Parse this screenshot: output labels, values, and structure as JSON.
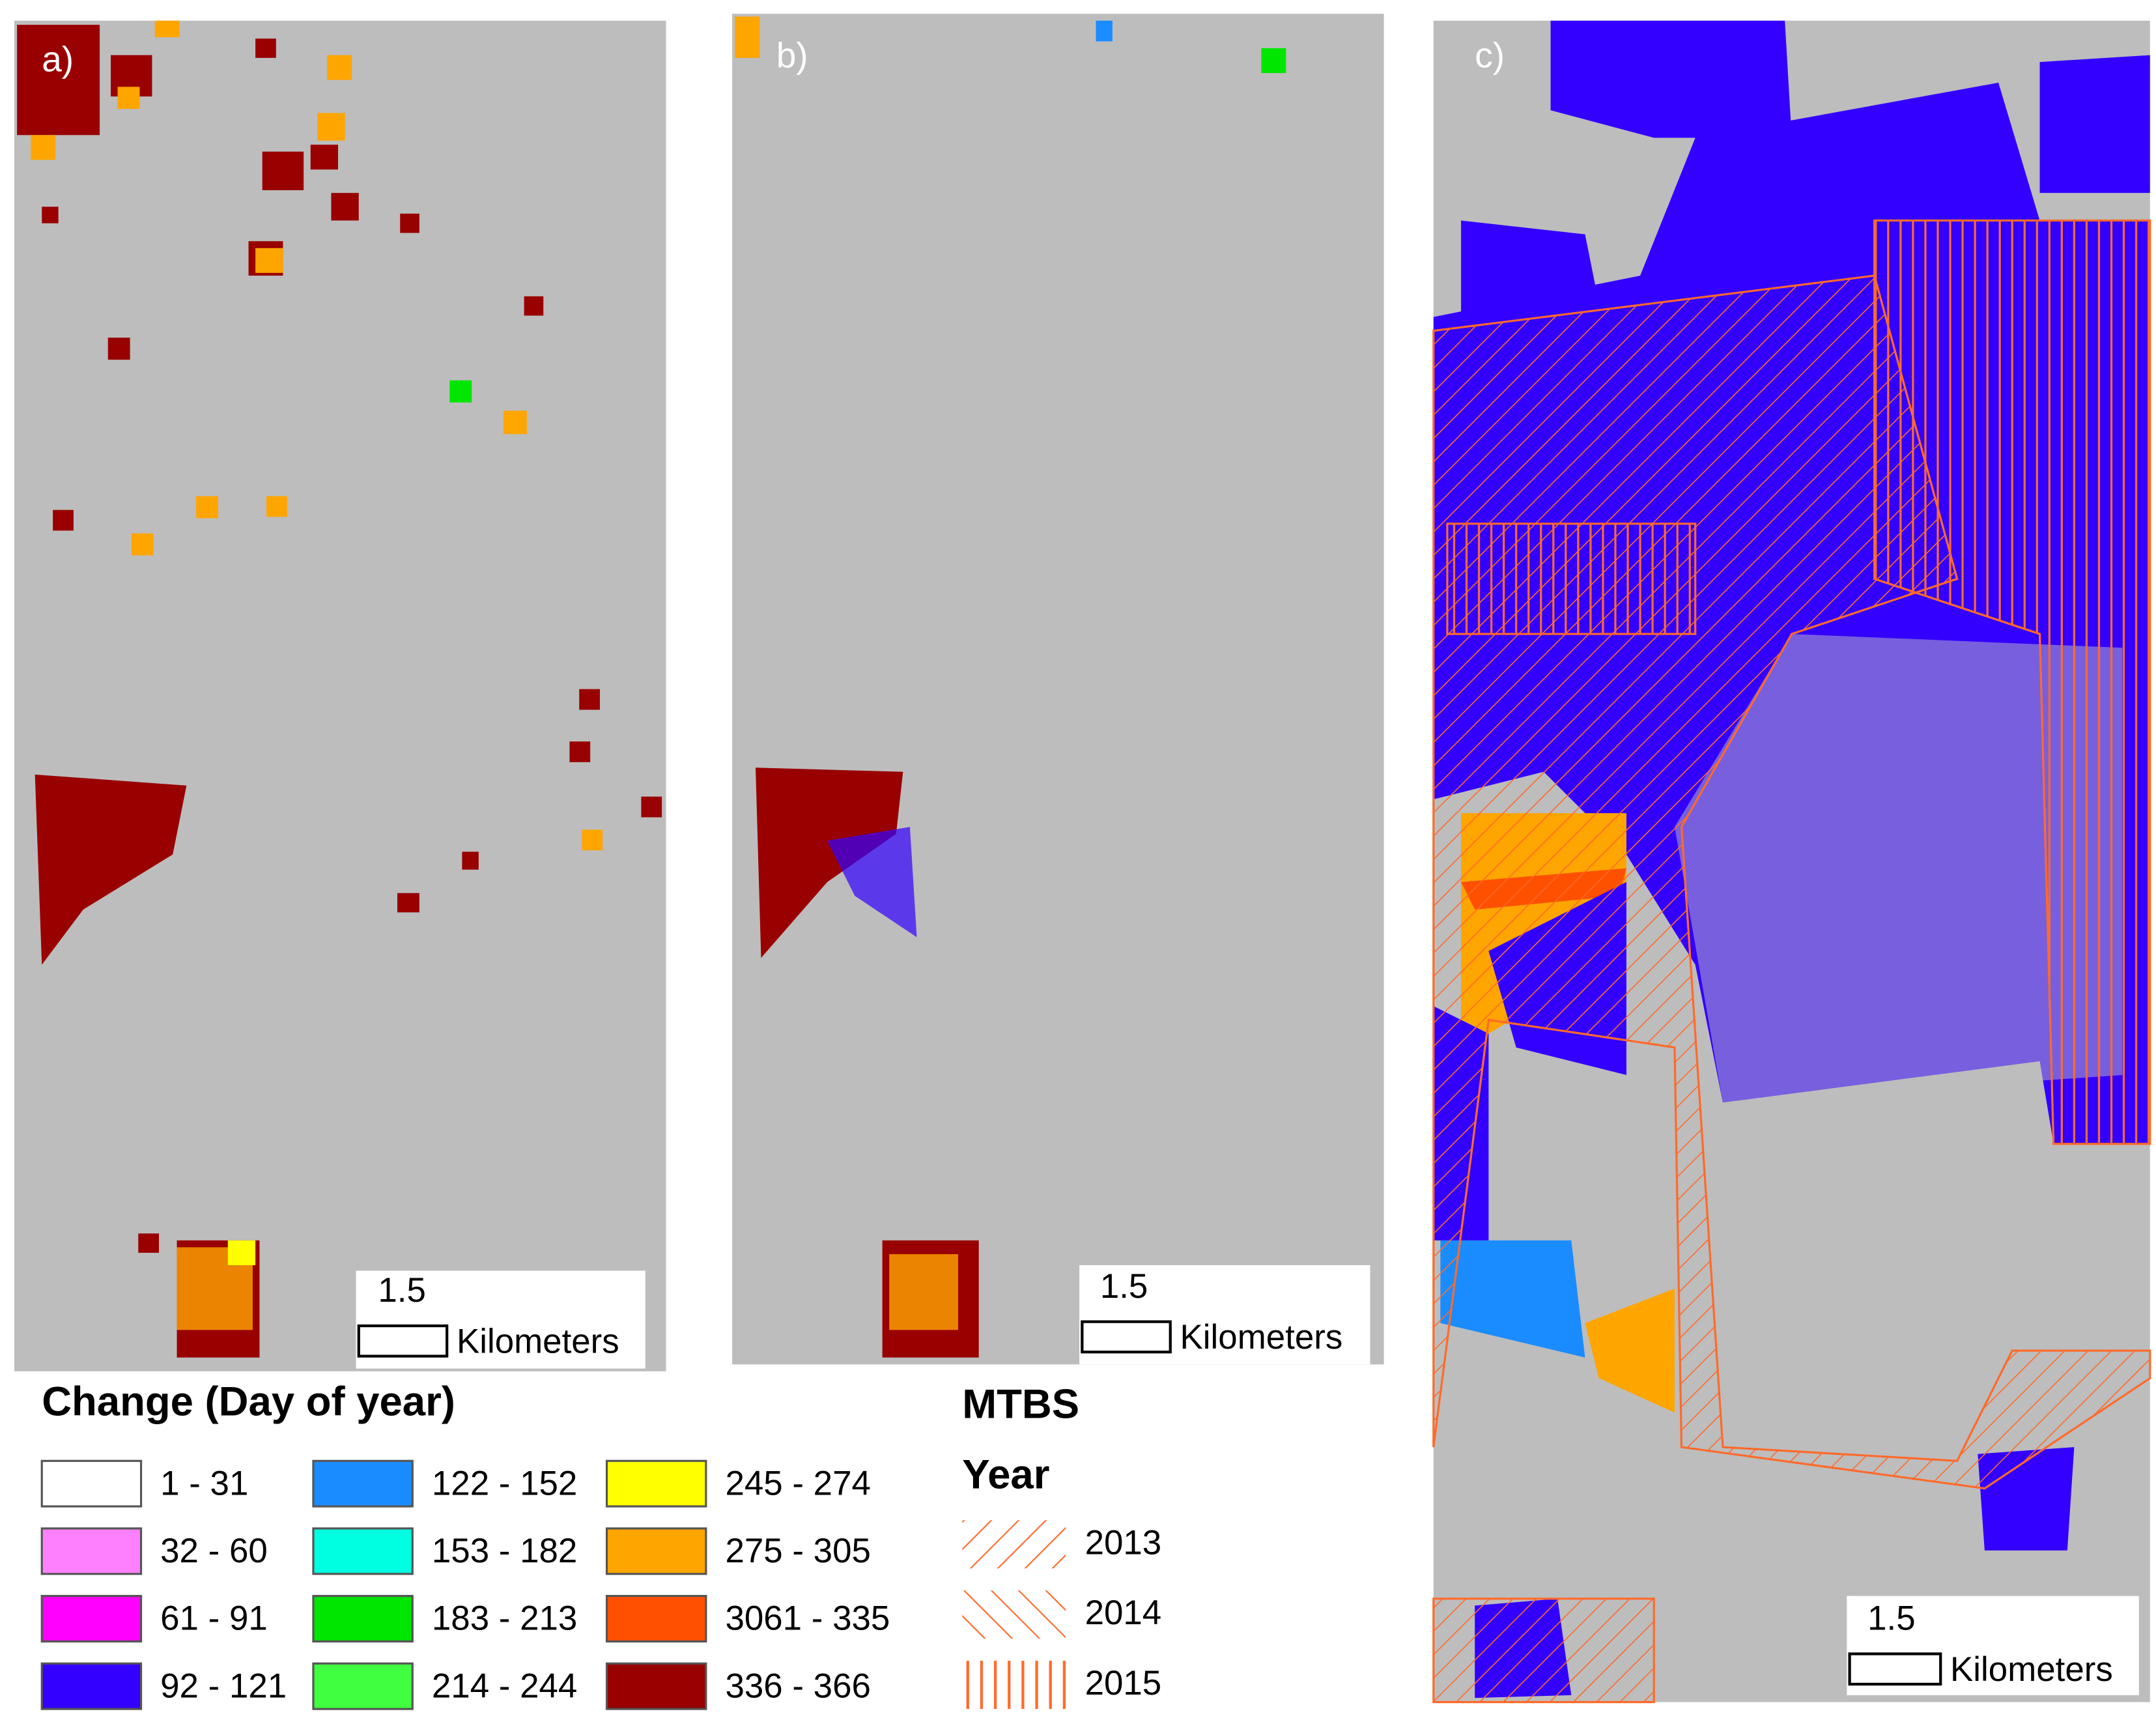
{
  "panels": [
    {
      "label": "a)",
      "scale_value": "1.5",
      "scale_unit": "Kilometers"
    },
    {
      "label": "b)",
      "scale_value": "1.5",
      "scale_unit": "Kilometers"
    },
    {
      "label": "c)",
      "scale_value": "1.5",
      "scale_unit": "Kilometers"
    }
  ],
  "change_legend": {
    "title": "Change (Day of year)",
    "items": [
      {
        "label": "1 - 31",
        "color": "#ffffff"
      },
      {
        "label": "32 - 60",
        "color": "#ff80ff"
      },
      {
        "label": "61 - 91",
        "color": "#ff00ff"
      },
      {
        "label": "92 - 121",
        "color": "#3300ff"
      },
      {
        "label": "122 - 152",
        "color": "#1a8cff"
      },
      {
        "label": "153 - 182",
        "color": "#00ffe0"
      },
      {
        "label": "183 - 213",
        "color": "#00e600"
      },
      {
        "label": "214 - 244",
        "color": "#40ff40"
      },
      {
        "label": "245 - 274",
        "color": "#ffff00"
      },
      {
        "label": "275 - 305",
        "color": "#ffa500"
      },
      {
        "label": "3061 - 335",
        "color": "#ff5000"
      },
      {
        "label": "336 - 366",
        "color": "#990000"
      }
    ]
  },
  "mtbs_legend": {
    "title": "MTBS",
    "subtitle": "Year",
    "items": [
      {
        "label": "2013",
        "pattern": "forward-diagonal"
      },
      {
        "label": "2014",
        "pattern": "backward-diagonal"
      },
      {
        "label": "2015",
        "pattern": "vertical"
      }
    ]
  }
}
